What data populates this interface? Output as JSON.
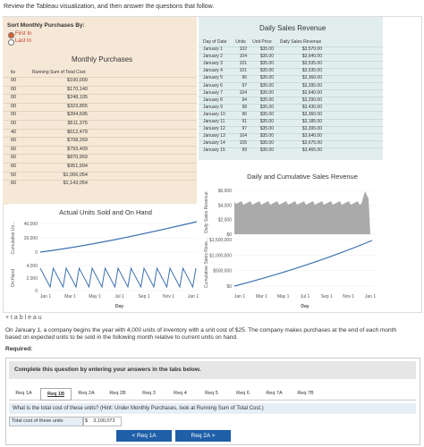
{
  "instruction": "Review the Tableau visualization, and then answer the questions that follow.",
  "viz": {
    "sort": {
      "title": "Sort Monthly Purchases By:",
      "options": [
        "First In",
        "Last In"
      ],
      "selected_index": 0
    },
    "monthly": {
      "title": "Monthly Purchases",
      "headers": [
        "its",
        "Running Sum of Total Cost"
      ],
      "rows": [
        [
          "00",
          "$100,000"
        ],
        [
          "00",
          "$170,140"
        ],
        [
          "00",
          "$248,105"
        ],
        [
          "00",
          "$323,855"
        ],
        [
          "00",
          "$394,695"
        ],
        [
          "00",
          "$511,375"
        ],
        [
          "40",
          "$612,479"
        ],
        [
          "60",
          "$708,269"
        ],
        [
          "60",
          "$793,409"
        ],
        [
          "60",
          "$870,959"
        ],
        [
          "60",
          "$951,994"
        ],
        [
          "50",
          "$1,066,054"
        ],
        [
          "60",
          "$1,143,054"
        ]
      ]
    },
    "daily": {
      "title": "Daily Sales Revenue",
      "headers": [
        "Day of Date",
        "Units",
        "Unit Price",
        "Daily Sales Revenue"
      ],
      "rows": [
        [
          "January 1",
          "102",
          "$35.00",
          "$3,570.00"
        ],
        [
          "January 2",
          "104",
          "$35.00",
          "$3,640.00"
        ],
        [
          "January 3",
          "101",
          "$35.00",
          "$3,535.00"
        ],
        [
          "January 4",
          "101",
          "$35.00",
          "$3,535.00"
        ],
        [
          "January 5",
          "96",
          "$35.00",
          "$3,360.00"
        ],
        [
          "January 6",
          "97",
          "$35.00",
          "$3,395.00"
        ],
        [
          "January 7",
          "104",
          "$35.00",
          "$3,640.00"
        ],
        [
          "January 8",
          "94",
          "$35.00",
          "$3,290.00"
        ],
        [
          "January 9",
          "98",
          "$35.00",
          "$3,430.00"
        ],
        [
          "January 10",
          "96",
          "$35.00",
          "$3,360.00"
        ],
        [
          "January 11",
          "91",
          "$35.00",
          "$3,185.00"
        ],
        [
          "January 12",
          "97",
          "$35.00",
          "$3,395.00"
        ],
        [
          "January 13",
          "104",
          "$35.00",
          "$3,640.00"
        ],
        [
          "January 14",
          "105",
          "$35.00",
          "$3,675.00"
        ],
        [
          "January 15",
          "99",
          "$35.00",
          "$3,465.00"
        ]
      ]
    },
    "units_chart": {
      "title": "Actual Units Sold and On Hand",
      "panels": [
        {
          "label": "Cumulative Un...",
          "ticks": [
            "40,000",
            "20,000",
            "0"
          ]
        },
        {
          "label": "On Hand",
          "ticks": [
            "4,000",
            "2,000",
            "0"
          ]
        }
      ],
      "x_ticks": [
        "Jan 1",
        "Mar 1",
        "May 1",
        "Jul 1",
        "Sep 1",
        "Nov 1",
        "Jan 1"
      ],
      "x_label": "Day"
    },
    "revenue_chart": {
      "title": "Daily and Cumulative Sales Revenue",
      "panels": [
        {
          "label": "Daily Sales Revenue",
          "ticks": [
            "$6,000",
            "$4,000",
            "$2,000",
            "$0"
          ]
        },
        {
          "label": "Cumulative Sales Reve...",
          "ticks": [
            "$1,500,000",
            "$1,000,000",
            "$500,000",
            "$0"
          ]
        }
      ],
      "x_ticks": [
        "Jan 1",
        "Mar 1",
        "May 1",
        "Jul 1",
        "Sep 1",
        "Nov 1",
        "Jan 1"
      ],
      "x_label": "Day"
    },
    "logo": "+ t a b l e a u"
  },
  "question": {
    "intro": "On January 1, a company begins the year with 4,000 units of inventory with a unit cost of $25. The company makes purchases at the end of each month based on expected units to be sold in the following month relative to current units on hand.",
    "required": "Required:",
    "instruction": "Complete this question by entering your answers in the tabs below.",
    "tabs": [
      "Req 1A",
      "Req 1B",
      "Req 2A",
      "Req 2B",
      "Req 3",
      "Req 4",
      "Req 5",
      "Req 6",
      "Req 7A",
      "Req 7B"
    ],
    "active_tab": 1,
    "prompt": "What is the total cost of these units? (Hint: Under Monthly Purchases, look at Running Sum of Total Cost.)",
    "answer_label": "Total cost of these units",
    "currency": "$",
    "answer": "3,100,073",
    "prev": "< Req 1A",
    "next": "Req 2A >"
  }
}
